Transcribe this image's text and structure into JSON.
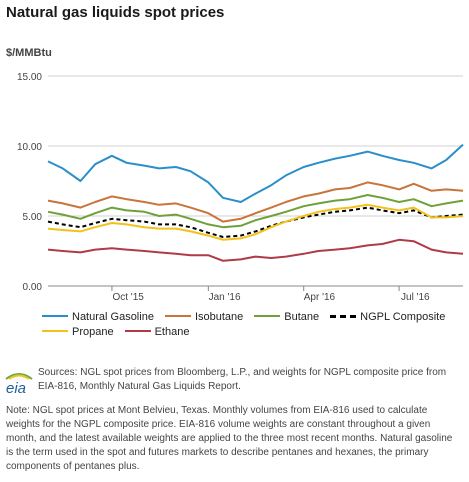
{
  "header": {
    "title": "Natural gas liquids spot prices",
    "unit": "$/MMBtu"
  },
  "chart_data": {
    "type": "line",
    "title": "Natural gas liquids spot prices",
    "ylabel": "$/MMBtu",
    "ylim": [
      0,
      15
    ],
    "yticks": [
      "15.00",
      "10.00",
      "5.00",
      "0.00"
    ],
    "xticks": [
      "Oct '15",
      "Jan '16",
      "Apr '16",
      "Jul '16"
    ],
    "xrange": [
      "2015-08-01",
      "2016-08-31"
    ],
    "grid": true,
    "legend_position": "bottom",
    "x": [
      "2015-08-01",
      "2015-08-15",
      "2015-09-01",
      "2015-09-15",
      "2015-10-01",
      "2015-10-15",
      "2015-11-01",
      "2015-11-15",
      "2015-12-01",
      "2015-12-15",
      "2016-01-01",
      "2016-01-15",
      "2016-02-01",
      "2016-02-15",
      "2016-03-01",
      "2016-03-15",
      "2016-04-01",
      "2016-04-15",
      "2016-05-01",
      "2016-05-15",
      "2016-06-01",
      "2016-06-15",
      "2016-07-01",
      "2016-07-15",
      "2016-08-01",
      "2016-08-15",
      "2016-08-31"
    ],
    "series": [
      {
        "name": "Natural Gasoline",
        "color": "#2a8fc9",
        "values": [
          8.9,
          8.4,
          7.5,
          8.7,
          9.3,
          8.8,
          8.6,
          8.4,
          8.5,
          8.2,
          7.4,
          6.3,
          6.0,
          6.6,
          7.2,
          7.9,
          8.5,
          8.8,
          9.1,
          9.3,
          9.6,
          9.3,
          9.0,
          8.8,
          8.4,
          9.0,
          10.1
        ]
      },
      {
        "name": "Isobutane",
        "color": "#c8743a",
        "values": [
          6.1,
          5.9,
          5.6,
          6.0,
          6.4,
          6.2,
          6.0,
          5.8,
          5.9,
          5.6,
          5.2,
          4.6,
          4.8,
          5.2,
          5.6,
          6.0,
          6.4,
          6.6,
          6.9,
          7.0,
          7.4,
          7.2,
          6.9,
          7.3,
          6.8,
          6.9,
          6.8
        ]
      },
      {
        "name": "Butane",
        "color": "#6ea13a",
        "values": [
          5.3,
          5.1,
          4.8,
          5.2,
          5.6,
          5.4,
          5.3,
          5.0,
          5.1,
          4.8,
          4.4,
          4.2,
          4.3,
          4.7,
          5.0,
          5.3,
          5.7,
          5.9,
          6.1,
          6.2,
          6.5,
          6.3,
          6.0,
          6.2,
          5.7,
          5.9,
          6.1
        ]
      },
      {
        "name": "NGPL Composite",
        "color": "#000000",
        "values": [
          4.6,
          4.4,
          4.2,
          4.5,
          4.8,
          4.7,
          4.6,
          4.4,
          4.4,
          4.2,
          3.8,
          3.5,
          3.6,
          3.9,
          4.3,
          4.6,
          4.9,
          5.1,
          5.3,
          5.4,
          5.6,
          5.4,
          5.2,
          5.4,
          4.9,
          5.0,
          5.1
        ]
      },
      {
        "name": "Propane",
        "color": "#f2c21b",
        "values": [
          4.1,
          4.0,
          3.9,
          4.2,
          4.5,
          4.4,
          4.2,
          4.1,
          4.1,
          3.9,
          3.6,
          3.3,
          3.4,
          3.7,
          4.2,
          4.6,
          5.0,
          5.3,
          5.5,
          5.6,
          5.8,
          5.6,
          5.4,
          5.6,
          4.9,
          4.9,
          5.0
        ]
      },
      {
        "name": "Ethane",
        "color": "#b03a48",
        "values": [
          2.6,
          2.5,
          2.4,
          2.6,
          2.7,
          2.6,
          2.5,
          2.4,
          2.3,
          2.2,
          2.2,
          1.8,
          1.9,
          2.1,
          2.0,
          2.1,
          2.3,
          2.5,
          2.6,
          2.7,
          2.9,
          3.0,
          3.3,
          3.2,
          2.6,
          2.4,
          2.3
        ]
      }
    ]
  },
  "legend": {
    "row1": [
      {
        "label": "Natural Gasoline",
        "color": "#2a8fc9",
        "dashed": false
      },
      {
        "label": "Isobutane",
        "color": "#c8743a",
        "dashed": false
      },
      {
        "label": "Butane",
        "color": "#6ea13a",
        "dashed": false
      },
      {
        "label": "NGPL Composite",
        "color": "#000000",
        "dashed": true
      }
    ],
    "row2": [
      {
        "label": "Propane",
        "color": "#f2c21b",
        "dashed": false
      },
      {
        "label": "Ethane",
        "color": "#b03a48",
        "dashed": false
      }
    ]
  },
  "footer": {
    "logo_text": "eia",
    "sources": "Sources: NGL spot prices from Bloomberg, L.P., and weights for NGPL composite price from EIA-816, Monthly Natural Gas Liquids Report.",
    "note": "Note: NGL spot prices at Mont Belvieu, Texas. Monthly volumes from EIA-816 used to calculate weights for the NGPL composite price. EIA-816 volume weights are constant throughout a given month, and the latest available weights are applied to the three most recent months. Natural gasoline is the term used in the spot and futures markets to describe pentanes and hexanes, the primary components of pentanes plus."
  }
}
